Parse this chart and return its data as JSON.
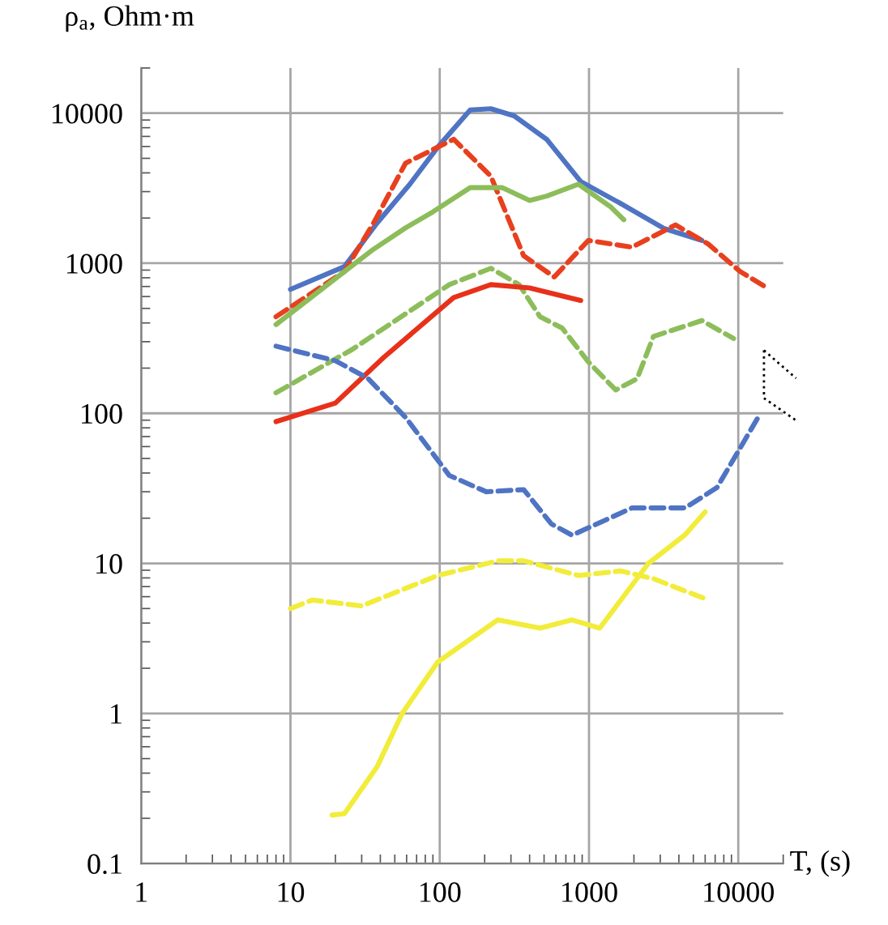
{
  "chart_data": {
    "type": "line",
    "xlabel": "T, (s)",
    "ylabel": "ρ$_{a}$, Ohm·m",
    "log": "xy",
    "grid": true,
    "xlim": [
      1,
      20000
    ],
    "xticks": [
      1,
      10,
      100,
      1000,
      10000
    ],
    "ylim": [
      0.1,
      20000
    ],
    "yticks": [
      0.1,
      1,
      10,
      100,
      1000,
      10000
    ],
    "series": [
      {
        "color": "#4f74c4",
        "line_style": "solid",
        "x": [
          10,
          23,
          38,
          63,
          97,
          160,
          220,
          315,
          520,
          880,
          1630,
          3200,
          5700
        ],
        "values": [
          670,
          950,
          1850,
          3360,
          5940,
          10500,
          10700,
          9600,
          6700,
          3500,
          2500,
          1700,
          1420
        ]
      },
      {
        "color": "#e8401e",
        "line_style": "dashed",
        "x": [
          8,
          23,
          36,
          59,
          124,
          220,
          365,
          585,
          990,
          1940,
          3800,
          6300,
          10300,
          15400
        ],
        "values": [
          440,
          880,
          1850,
          4640,
          6700,
          3800,
          1120,
          810,
          1420,
          1280,
          1800,
          1340,
          880,
          690
        ]
      },
      {
        "color": "#8cbd5a",
        "line_style": "solid",
        "x": [
          8,
          23,
          36,
          59,
          90,
          160,
          263,
          400,
          520,
          850,
          1400,
          1710
        ],
        "values": [
          390,
          880,
          1240,
          1720,
          2200,
          3190,
          3190,
          2620,
          2800,
          3360,
          2370,
          1950
        ]
      },
      {
        "color": "#8cbd5a",
        "line_style": "dashed",
        "x": [
          8,
          26,
          59,
          116,
          220,
          340,
          470,
          660,
          990,
          1510,
          2100,
          2700,
          5700,
          9300
        ],
        "values": [
          137,
          267,
          460,
          720,
          925,
          720,
          440,
          370,
          220,
          143,
          170,
          325,
          415,
          315
        ]
      },
      {
        "color": "#e8311a",
        "line_style": "solid",
        "x": [
          8,
          20,
          42,
          124,
          220,
          400,
          880
        ],
        "values": [
          88,
          117,
          235,
          590,
          720,
          685,
          565
        ]
      },
      {
        "color": "#4f74c4",
        "line_style": "dashed",
        "x": [
          8,
          20,
          33,
          59,
          116,
          205,
          365,
          560,
          770,
          1940,
          4400,
          7200,
          14000
        ],
        "values": [
          280,
          224,
          171,
          94,
          38.5,
          30,
          31,
          18.3,
          15.4,
          23.4,
          23.4,
          32,
          99
        ]
      },
      {
        "color": "#f2ec3a",
        "line_style": "dashed",
        "x": [
          10,
          14,
          30,
          97,
          245,
          365,
          850,
          1630,
          2700,
          6300
        ],
        "values": [
          5.0,
          5.7,
          5.2,
          8.3,
          10.4,
          10.4,
          8.3,
          8.9,
          7.9,
          5.7
        ]
      },
      {
        "color": "#f2ec3a",
        "line_style": "solid",
        "x": [
          19,
          23,
          38,
          56,
          97,
          245,
          470,
          770,
          1180,
          2500,
          4400,
          6000
        ],
        "values": [
          0.21,
          0.215,
          0.44,
          1.0,
          2.2,
          4.2,
          3.7,
          4.2,
          3.7,
          10,
          15.5,
          22
        ]
      }
    ]
  }
}
